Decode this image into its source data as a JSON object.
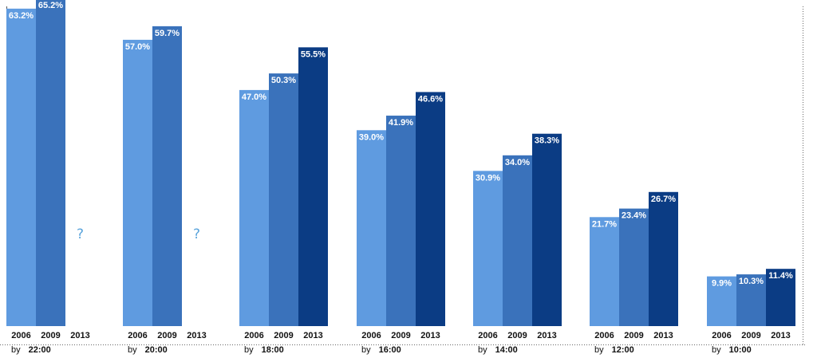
{
  "chart_data": {
    "type": "bar",
    "title": "",
    "xlabel": "",
    "ylabel": "",
    "ylim": [
      0,
      66
    ],
    "grid": false,
    "legend": "none",
    "categories": [
      {
        "prefix": "by",
        "time": "22:00"
      },
      {
        "prefix": "by",
        "time": "20:00"
      },
      {
        "prefix": "by",
        "time": "18:00"
      },
      {
        "prefix": "by",
        "time": "16:00"
      },
      {
        "prefix": "by",
        "time": "14:00"
      },
      {
        "prefix": "by",
        "time": "12:00"
      },
      {
        "prefix": "by",
        "time": "10:00"
      }
    ],
    "series": [
      {
        "year": "2006",
        "color": "#5f9be0",
        "values": [
          63.2,
          57.0,
          47.0,
          39.0,
          30.9,
          21.7,
          9.9
        ],
        "labels": [
          "63.2%",
          "57.0%",
          "47.0%",
          "39.0%",
          "30.9%",
          "21.7%",
          "9.9%"
        ]
      },
      {
        "year": "2009",
        "color": "#3a72bb",
        "values": [
          65.2,
          59.7,
          50.3,
          41.9,
          34.0,
          23.4,
          10.3
        ],
        "labels": [
          "65.2%",
          "59.7%",
          "50.3%",
          "41.9%",
          "34.0%",
          "23.4%",
          "10.3%"
        ]
      },
      {
        "year": "2013",
        "color": "#0b3c84",
        "values": [
          null,
          null,
          55.5,
          46.6,
          38.3,
          26.7,
          11.4
        ],
        "labels": [
          "?",
          "?",
          "55.5%",
          "46.6%",
          "38.3%",
          "26.7%",
          "11.4%"
        ]
      }
    ],
    "missing_marker_color": "#5aa4dc"
  }
}
